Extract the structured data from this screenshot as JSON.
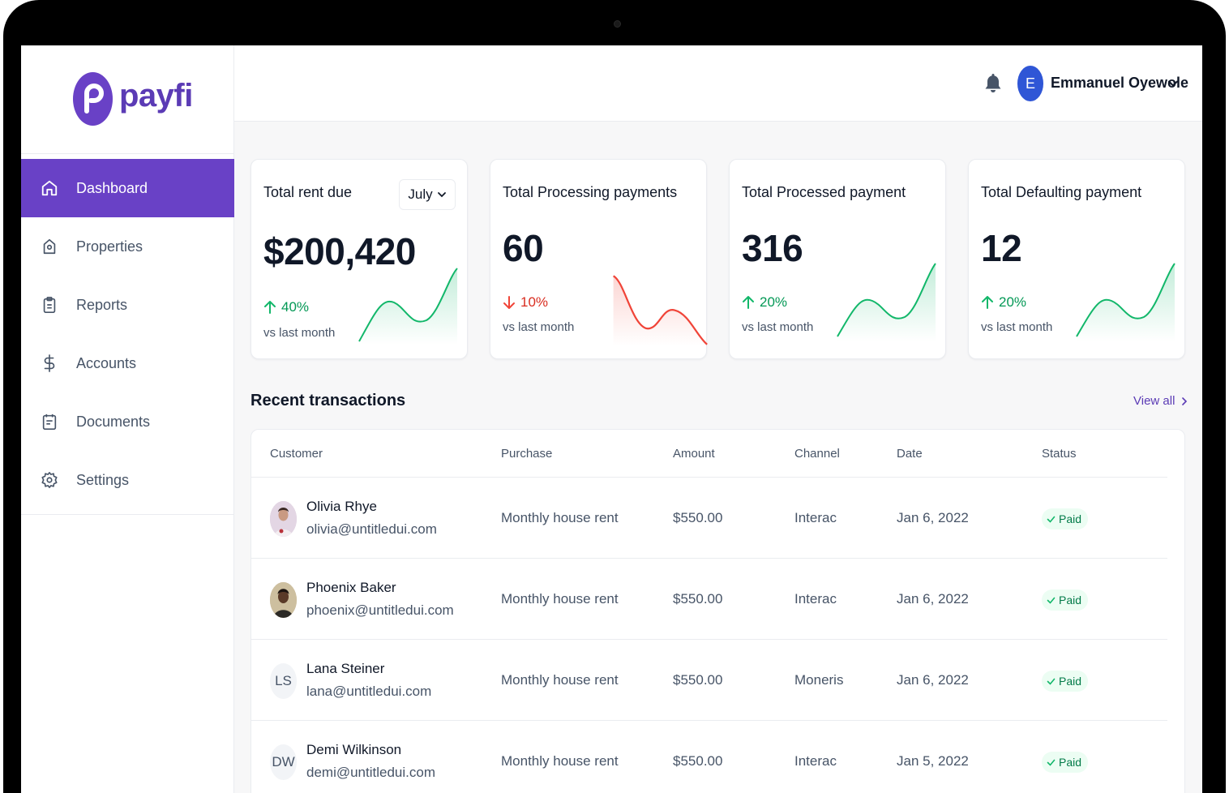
{
  "brand": {
    "name": "payfi",
    "accent": "#6941c6"
  },
  "sidebar": {
    "items": [
      {
        "label": "Dashboard",
        "icon": "home-icon",
        "active": true
      },
      {
        "label": "Properties",
        "icon": "location-pin-icon",
        "active": false
      },
      {
        "label": "Reports",
        "icon": "clipboard-icon",
        "active": false
      },
      {
        "label": "Accounts",
        "icon": "dollar-icon",
        "active": false
      },
      {
        "label": "Documents",
        "icon": "document-icon",
        "active": false
      },
      {
        "label": "Settings",
        "icon": "gear-icon",
        "active": false
      }
    ]
  },
  "header": {
    "user": {
      "initial": "E",
      "name": "Emmanuel Oyewole"
    }
  },
  "cards": [
    {
      "title": "Total rent due",
      "value": "$200,420",
      "change": "40%",
      "direction": "up",
      "sub": "vs last month",
      "month": "July"
    },
    {
      "title": "Total Processing payments",
      "value": "60",
      "change": "10%",
      "direction": "down",
      "sub": "vs last month"
    },
    {
      "title": "Total Processed payment",
      "value": "316",
      "change": "20%",
      "direction": "up",
      "sub": "vs last month"
    },
    {
      "title": "Total Defaulting payment",
      "value": "12",
      "change": "20%",
      "direction": "up",
      "sub": "vs last month"
    }
  ],
  "transactions": {
    "title": "Recent transactions",
    "view_all": "View all",
    "columns": [
      "Customer",
      "Purchase",
      "Amount",
      "Channel",
      "Date",
      "Status"
    ],
    "rows": [
      {
        "name": "Olivia Rhye",
        "email": "olivia@untitledui.com",
        "avatar": "photo",
        "purchase": "Monthly house rent",
        "amount": "$550.00",
        "channel": "Interac",
        "date": "Jan 6, 2022",
        "status": "Paid"
      },
      {
        "name": "Phoenix Baker",
        "email": "phoenix@untitledui.com",
        "avatar": "photo",
        "purchase": "Monthly house rent",
        "amount": "$550.00",
        "channel": "Interac",
        "date": "Jan 6, 2022",
        "status": "Paid"
      },
      {
        "name": "Lana Steiner",
        "email": "lana@untitledui.com",
        "avatar": "LS",
        "purchase": "Monthly house rent",
        "amount": "$550.00",
        "channel": "Moneris",
        "date": "Jan 6, 2022",
        "status": "Paid"
      },
      {
        "name": "Demi Wilkinson",
        "email": "demi@untitledui.com",
        "avatar": "DW",
        "purchase": "Monthly house rent",
        "amount": "$550.00",
        "channel": "Interac",
        "date": "Jan 5, 2022",
        "status": "Paid"
      }
    ]
  },
  "colors": {
    "positive": "#12b76a",
    "negative": "#f04438",
    "paid_badge_bg": "#ecfdf3",
    "paid_badge_text": "#027a48"
  }
}
